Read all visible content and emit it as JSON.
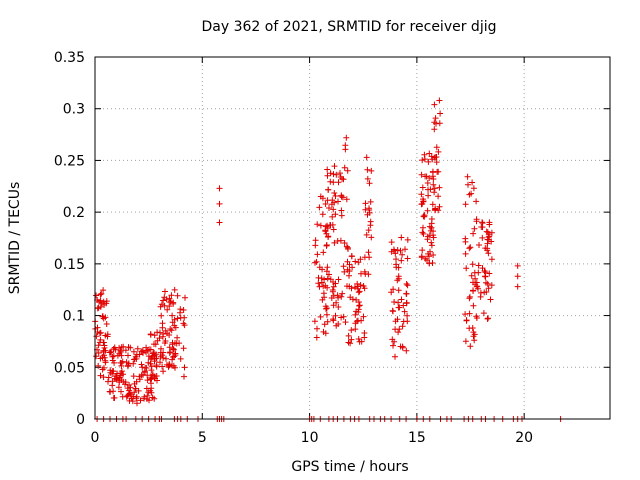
{
  "chart_data": {
    "type": "scatter",
    "title": "Day 362 of 2021, SRMTID for receiver djig",
    "xlabel": "GPS time / hours",
    "ylabel": "SRMTID / TECUs",
    "xlim": [
      0,
      24
    ],
    "ylim": [
      0,
      0.35
    ],
    "x_ticks": [
      0,
      5,
      10,
      15,
      20
    ],
    "y_ticks": [
      0,
      0.05,
      0.1,
      0.15,
      0.2,
      0.25,
      0.3,
      0.35
    ],
    "y_tick_labels": [
      "0",
      "0.05",
      "0.1",
      "0.15",
      "0.2",
      "0.25",
      "0.3",
      "0.35"
    ],
    "grid": true,
    "marker": "+",
    "color": "#e00000",
    "series": [
      {
        "name": "SRMTID",
        "clusters": [
          {
            "x": [
              0.0,
              0.6
            ],
            "y": [
              0.04,
              0.125
            ],
            "n": 55
          },
          {
            "x": [
              0.6,
              1.5
            ],
            "y": [
              0.02,
              0.07
            ],
            "n": 60
          },
          {
            "x": [
              1.5,
              2.9
            ],
            "y": [
              0.015,
              0.07
            ],
            "n": 90
          },
          {
            "x": [
              2.5,
              3.2
            ],
            "y": [
              0.04,
              0.09
            ],
            "n": 25
          },
          {
            "x": [
              3.0,
              3.8
            ],
            "y": [
              0.05,
              0.125
            ],
            "n": 50
          },
          {
            "x": [
              3.5,
              4.2
            ],
            "y": [
              0.04,
              0.12
            ],
            "n": 25
          },
          {
            "x": [
              10.2,
              10.8
            ],
            "y": [
              0.075,
              0.22
            ],
            "n": 40
          },
          {
            "x": [
              10.8,
              11.4
            ],
            "y": [
              0.09,
              0.255
            ],
            "n": 60
          },
          {
            "x": [
              11.4,
              11.8
            ],
            "y": [
              0.09,
              0.28
            ],
            "n": 30
          },
          {
            "x": [
              11.8,
              12.6
            ],
            "y": [
              0.07,
              0.16
            ],
            "n": 50
          },
          {
            "x": [
              12.6,
              12.9
            ],
            "y": [
              0.13,
              0.26
            ],
            "n": 20
          },
          {
            "x": [
              13.8,
              14.6
            ],
            "y": [
              0.06,
              0.18
            ],
            "n": 55
          },
          {
            "x": [
              15.2,
              15.8
            ],
            "y": [
              0.15,
              0.26
            ],
            "n": 60
          },
          {
            "x": [
              15.8,
              16.1
            ],
            "y": [
              0.2,
              0.31
            ],
            "n": 25
          },
          {
            "x": [
              17.2,
              17.8
            ],
            "y": [
              0.07,
              0.235
            ],
            "n": 45
          },
          {
            "x": [
              17.8,
              18.5
            ],
            "y": [
              0.095,
              0.2
            ],
            "n": 45
          }
        ],
        "points": [
          {
            "x": 5.8,
            "y": 0.223
          },
          {
            "x": 5.8,
            "y": 0.208
          },
          {
            "x": 5.8,
            "y": 0.19
          },
          {
            "x": 19.7,
            "y": 0.148
          },
          {
            "x": 19.7,
            "y": 0.138
          },
          {
            "x": 19.7,
            "y": 0.128
          }
        ],
        "zero_points_x": [
          0.1,
          0.4,
          0.7,
          1.0,
          1.3,
          1.45,
          1.9,
          2.2,
          2.5,
          2.8,
          3.0,
          3.1,
          3.7,
          3.85,
          4.0,
          4.3,
          4.8,
          5.7,
          5.8,
          5.9,
          6.0,
          10.0,
          10.1,
          10.2,
          10.5,
          10.9,
          11.1,
          11.3,
          11.6,
          11.9,
          12.1,
          12.3,
          12.8,
          13.0,
          13.3,
          13.5,
          13.8,
          14.2,
          14.5,
          15.0,
          15.3,
          15.6,
          16.1,
          16.4,
          16.6,
          17.2,
          17.4,
          17.6,
          18.0,
          18.2,
          18.6,
          19.0,
          19.5,
          19.7,
          19.9,
          21.7
        ]
      }
    ]
  }
}
